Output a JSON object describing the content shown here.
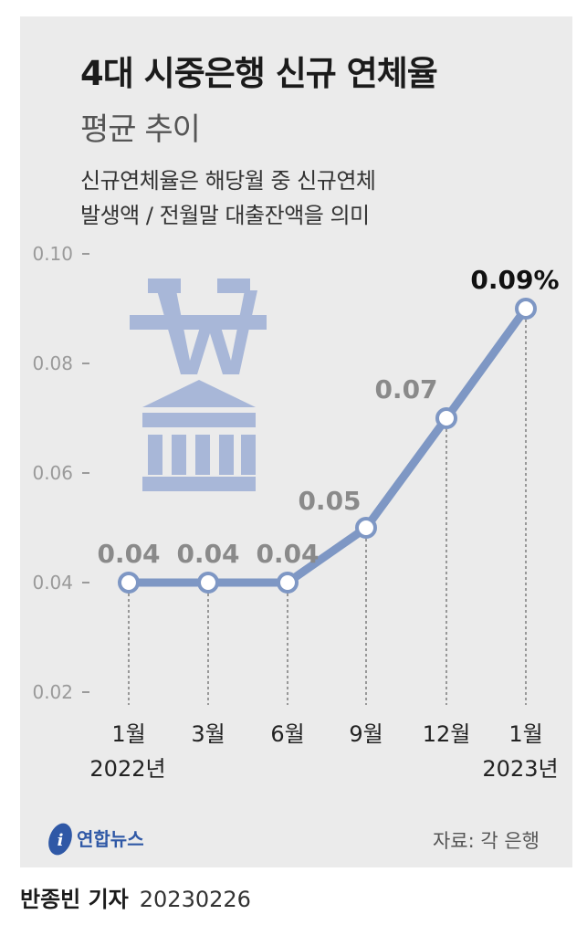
{
  "header": {
    "title": "4대 시중은행 신규 연체율",
    "subtitle": "평균 추이",
    "note_lines": [
      "신규연체율은 해당월 중 신규연체",
      "발생액 / 전월말 대출잔액을 의미"
    ]
  },
  "chart_data": {
    "type": "line",
    "categories": [
      "1월",
      "3월",
      "6월",
      "9월",
      "12월",
      "1월"
    ],
    "year_labels": [
      "2022년",
      "",
      "",
      "",
      "",
      "2023년"
    ],
    "values": [
      0.04,
      0.04,
      0.04,
      0.05,
      0.07,
      0.09
    ],
    "data_labels": [
      "0.04",
      "0.04",
      "0.04",
      "0.05",
      "0.07",
      "0.09%"
    ],
    "yticks": [
      "0.10",
      "0.08",
      "0.06",
      "0.04",
      "0.02"
    ],
    "ylim": [
      0.02,
      0.1
    ],
    "line_color": "#7e97c4",
    "label_color": "#8a8a8a",
    "last_label_color": "#111111"
  },
  "icon": {
    "name": "won-bank-icon",
    "color": "#a8b7d8"
  },
  "footer": {
    "logo_text": "연합뉴스",
    "source": "자료: 각 은행",
    "reporter": "반종빈 기자",
    "date": "20230226"
  }
}
